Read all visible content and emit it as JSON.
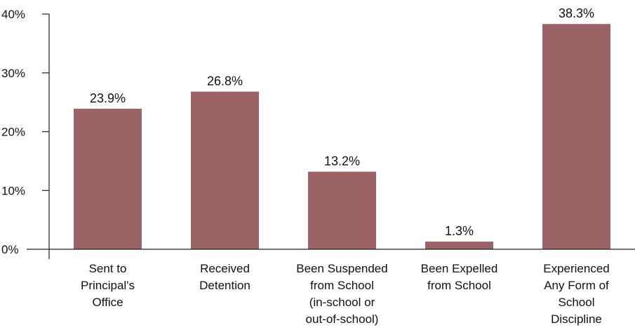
{
  "chart_data": {
    "type": "bar",
    "categories": [
      [
        "Sent to",
        "Principal's",
        "Office"
      ],
      [
        "Received",
        "Detention"
      ],
      [
        "Been Suspended",
        "from School",
        "(in-school or",
        "out-of-school)"
      ],
      [
        "Been Expelled",
        "from School"
      ],
      [
        "Experienced",
        "Any Form of",
        "School",
        "Discipline"
      ]
    ],
    "values": [
      23.9,
      26.8,
      13.2,
      1.3,
      38.3
    ],
    "data_labels": [
      "23.9%",
      "26.8%",
      "13.2%",
      "1.3%",
      "38.3%"
    ],
    "y_ticks": [
      0,
      10,
      20,
      30,
      40
    ],
    "y_tick_labels": [
      "0%",
      "10%",
      "20%",
      "30%",
      "40%"
    ],
    "ylim": [
      0,
      40
    ],
    "title": "",
    "xlabel": "",
    "ylabel": "",
    "grid": false,
    "legend": "none",
    "bar_color": "#9c6366",
    "axis_color": "#222222"
  }
}
